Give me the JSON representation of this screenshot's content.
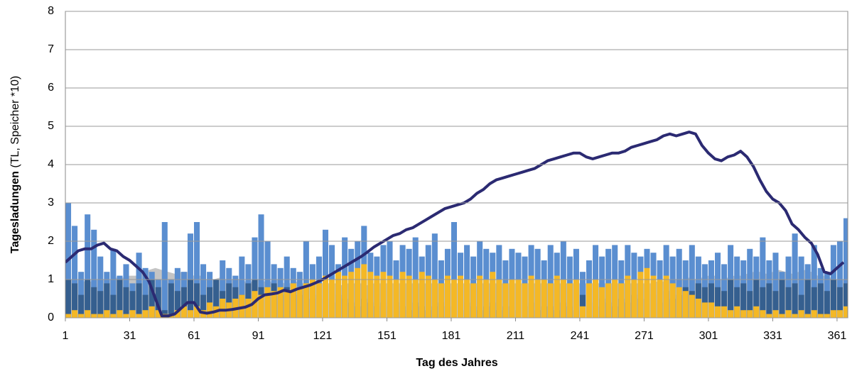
{
  "chart_data": {
    "type": "combo",
    "xlabel": "Tag des Jahres",
    "ylabel": {
      "main": "Tagesladungen",
      "detail": "(TL, Speicher *10)"
    },
    "xlim": [
      1,
      366
    ],
    "ylim": [
      0,
      8
    ],
    "xticks": [
      1,
      31,
      61,
      91,
      121,
      151,
      181,
      211,
      241,
      271,
      301,
      331,
      361
    ],
    "yticks": [
      0,
      1,
      2,
      3,
      4,
      5,
      6,
      7,
      8
    ],
    "grid": true,
    "x": [
      1,
      4,
      7,
      10,
      13,
      16,
      19,
      22,
      25,
      28,
      31,
      34,
      37,
      40,
      43,
      46,
      49,
      52,
      55,
      58,
      61,
      64,
      67,
      70,
      73,
      76,
      79,
      82,
      85,
      88,
      91,
      94,
      97,
      100,
      103,
      106,
      109,
      112,
      115,
      118,
      121,
      124,
      127,
      130,
      133,
      136,
      139,
      142,
      145,
      148,
      151,
      154,
      157,
      160,
      163,
      166,
      169,
      172,
      175,
      178,
      181,
      184,
      187,
      190,
      193,
      196,
      199,
      202,
      205,
      208,
      211,
      214,
      217,
      220,
      223,
      226,
      229,
      232,
      235,
      238,
      241,
      244,
      247,
      250,
      253,
      256,
      259,
      262,
      265,
      268,
      271,
      274,
      277,
      280,
      283,
      286,
      289,
      292,
      295,
      298,
      301,
      304,
      307,
      310,
      313,
      316,
      319,
      322,
      325,
      328,
      331,
      334,
      337,
      340,
      343,
      346,
      349,
      352,
      355,
      358,
      361,
      364
    ],
    "series": [
      {
        "type": "area",
        "color": "#c4c4c4",
        "values": [
          1.0,
          1.0,
          1.0,
          0.95,
          0.95,
          1.0,
          1.0,
          1.0,
          1.05,
          1.05,
          1.1,
          1.1,
          1.15,
          1.25,
          1.3,
          1.25,
          1.2,
          1.15,
          1.2,
          1.2,
          1.1,
          1.1,
          1.0,
          1.0,
          1.05,
          1.0,
          1.0,
          1.0,
          0.95,
          0.95,
          1.0,
          0.95,
          0.95,
          1.0,
          0.9,
          0.9,
          0.95,
          0.9,
          0.9,
          0.95,
          0.9,
          0.9,
          0.9,
          0.85,
          0.9,
          0.9,
          0.9,
          0.85,
          0.9,
          0.9,
          0.9,
          0.9,
          0.9,
          0.9,
          0.9,
          0.9,
          0.9,
          0.9,
          0.9,
          0.9,
          0.9,
          0.9,
          0.9,
          0.9,
          0.9,
          0.9,
          0.9,
          0.9,
          0.9,
          0.9,
          0.9,
          0.9,
          0.9,
          0.9,
          0.9,
          0.9,
          0.9,
          0.9,
          0.9,
          0.9,
          0.9,
          0.9,
          0.9,
          0.9,
          0.9,
          0.9,
          0.9,
          0.9,
          0.9,
          0.9,
          0.9,
          0.9,
          0.95,
          0.95,
          1.0,
          1.0,
          1.0,
          1.05,
          1.0,
          1.05,
          1.1,
          1.1,
          1.0,
          1.05,
          1.1,
          1.1,
          1.15,
          1.2,
          1.2,
          1.15,
          1.2,
          1.25,
          1.2,
          1.15,
          1.2,
          1.25,
          1.2,
          1.1,
          1.1,
          1.05,
          1.0,
          1.0
        ]
      },
      {
        "type": "bar",
        "color": "#5a8ed0",
        "values": [
          3.0,
          2.4,
          1.2,
          2.7,
          2.3,
          1.6,
          1.2,
          1.8,
          1.1,
          1.4,
          0.9,
          1.7,
          1.3,
          1.2,
          1.0,
          2.5,
          1.0,
          1.3,
          1.2,
          2.2,
          2.5,
          1.4,
          1.2,
          1.0,
          1.5,
          1.3,
          1.1,
          1.6,
          1.4,
          2.1,
          2.7,
          2.0,
          1.4,
          1.3,
          1.6,
          1.3,
          1.2,
          2.0,
          1.4,
          1.6,
          2.3,
          1.9,
          1.4,
          2.1,
          1.8,
          2.0,
          2.4,
          1.7,
          1.6,
          1.9,
          2.0,
          1.5,
          1.9,
          1.8,
          2.1,
          1.6,
          1.9,
          2.2,
          1.5,
          1.8,
          2.5,
          1.7,
          1.9,
          1.6,
          2.0,
          1.8,
          1.7,
          1.9,
          1.5,
          1.8,
          1.7,
          1.6,
          1.9,
          1.8,
          1.5,
          1.9,
          1.7,
          2.0,
          1.6,
          1.8,
          1.2,
          1.5,
          1.9,
          1.6,
          1.8,
          1.9,
          1.5,
          1.9,
          1.7,
          1.6,
          1.8,
          1.7,
          1.5,
          1.9,
          1.6,
          1.8,
          1.5,
          1.9,
          1.6,
          1.4,
          1.5,
          1.7,
          1.4,
          1.9,
          1.6,
          1.5,
          1.8,
          1.6,
          2.1,
          1.5,
          1.7,
          1.2,
          1.6,
          2.2,
          1.6,
          1.4,
          1.9,
          1.3,
          1.2,
          1.9,
          2.0,
          2.6
        ]
      },
      {
        "type": "bar",
        "color": "#355f8f",
        "values": [
          1.0,
          0.9,
          0.6,
          1.0,
          0.8,
          0.7,
          0.9,
          0.6,
          1.0,
          0.8,
          0.7,
          0.9,
          0.6,
          1.0,
          0.8,
          0.2,
          0.9,
          0.7,
          0.8,
          1.0,
          0.9,
          0.6,
          0.8,
          1.0,
          0.7,
          0.9,
          0.8,
          0.6,
          0.9,
          1.0,
          0.8,
          0.7,
          0.9,
          0.6,
          0.8,
          0.7,
          0.6,
          0.8,
          0.5,
          0.6,
          0.5,
          0.4,
          0.6,
          0.5,
          0.4,
          0.3,
          0.5,
          0.4,
          0.3,
          0.4,
          0.3,
          0.4,
          0.3,
          0.2,
          0.4,
          0.3,
          0.2,
          0.3,
          0.4,
          0.3,
          0.3,
          0.2,
          0.4,
          0.3,
          0.2,
          0.3,
          0.4,
          0.2,
          0.3,
          0.3,
          0.2,
          0.3,
          0.4,
          0.2,
          0.3,
          0.3,
          0.2,
          0.4,
          0.3,
          0.2,
          0.6,
          0.4,
          0.3,
          0.5,
          0.4,
          0.3,
          0.5,
          0.4,
          0.6,
          0.5,
          0.5,
          0.6,
          0.4,
          0.7,
          0.5,
          0.6,
          0.8,
          0.7,
          0.9,
          0.8,
          0.9,
          0.8,
          0.7,
          1.0,
          0.8,
          0.9,
          0.7,
          1.0,
          0.8,
          0.9,
          0.7,
          1.0,
          0.8,
          0.9,
          0.6,
          1.0,
          0.8,
          0.9,
          0.7,
          1.0,
          0.8,
          0.9
        ]
      },
      {
        "type": "bar",
        "color": "#f4b826",
        "values": [
          0.1,
          0.2,
          0.1,
          0.2,
          0.1,
          0.1,
          0.2,
          0.1,
          0.2,
          0.1,
          0.2,
          0.1,
          0.2,
          0.3,
          0.2,
          0.1,
          0.1,
          0.2,
          0.3,
          0.2,
          0.3,
          0.2,
          0.4,
          0.3,
          0.5,
          0.4,
          0.5,
          0.6,
          0.5,
          0.7,
          0.6,
          0.8,
          0.7,
          0.8,
          0.7,
          0.9,
          0.8,
          0.9,
          1.0,
          0.9,
          1.1,
          1.0,
          1.2,
          1.1,
          1.2,
          1.3,
          1.4,
          1.2,
          1.1,
          1.2,
          1.1,
          1.0,
          1.2,
          1.1,
          1.0,
          1.2,
          1.1,
          1.0,
          0.9,
          1.1,
          1.0,
          1.1,
          1.0,
          0.9,
          1.1,
          1.0,
          1.2,
          1.0,
          0.9,
          1.0,
          1.0,
          0.9,
          1.1,
          1.0,
          1.0,
          0.9,
          1.1,
          1.0,
          0.9,
          1.0,
          0.3,
          0.9,
          1.0,
          0.8,
          0.9,
          1.0,
          0.9,
          1.1,
          1.0,
          1.2,
          1.3,
          1.1,
          1.0,
          1.1,
          0.9,
          0.8,
          0.7,
          0.6,
          0.5,
          0.4,
          0.4,
          0.3,
          0.3,
          0.2,
          0.3,
          0.2,
          0.2,
          0.3,
          0.2,
          0.1,
          0.2,
          0.1,
          0.2,
          0.1,
          0.2,
          0.1,
          0.2,
          0.1,
          0.1,
          0.2,
          0.2,
          0.3
        ]
      },
      {
        "type": "line",
        "color": "#2b2a72",
        "values": [
          1.45,
          1.6,
          1.75,
          1.8,
          1.8,
          1.9,
          1.95,
          1.8,
          1.75,
          1.6,
          1.5,
          1.35,
          1.2,
          0.95,
          0.5,
          0.05,
          0.05,
          0.1,
          0.25,
          0.4,
          0.4,
          0.15,
          0.12,
          0.15,
          0.2,
          0.2,
          0.22,
          0.25,
          0.28,
          0.35,
          0.5,
          0.6,
          0.62,
          0.65,
          0.72,
          0.68,
          0.75,
          0.8,
          0.85,
          0.92,
          1.0,
          1.1,
          1.2,
          1.3,
          1.4,
          1.5,
          1.6,
          1.72,
          1.85,
          1.95,
          2.05,
          2.15,
          2.2,
          2.3,
          2.35,
          2.45,
          2.55,
          2.65,
          2.75,
          2.85,
          2.9,
          2.95,
          3.0,
          3.1,
          3.25,
          3.35,
          3.5,
          3.6,
          3.65,
          3.7,
          3.75,
          3.8,
          3.85,
          3.9,
          4.0,
          4.1,
          4.15,
          4.2,
          4.25,
          4.3,
          4.3,
          4.2,
          4.15,
          4.2,
          4.25,
          4.3,
          4.3,
          4.35,
          4.45,
          4.5,
          4.55,
          4.6,
          4.65,
          4.75,
          4.8,
          4.75,
          4.8,
          4.85,
          4.8,
          4.5,
          4.3,
          4.15,
          4.1,
          4.2,
          4.25,
          4.35,
          4.2,
          3.95,
          3.6,
          3.3,
          3.1,
          3.0,
          2.8,
          2.45,
          2.3,
          2.1,
          1.95,
          1.65,
          1.2,
          1.15,
          1.3,
          1.45
        ]
      }
    ]
  }
}
